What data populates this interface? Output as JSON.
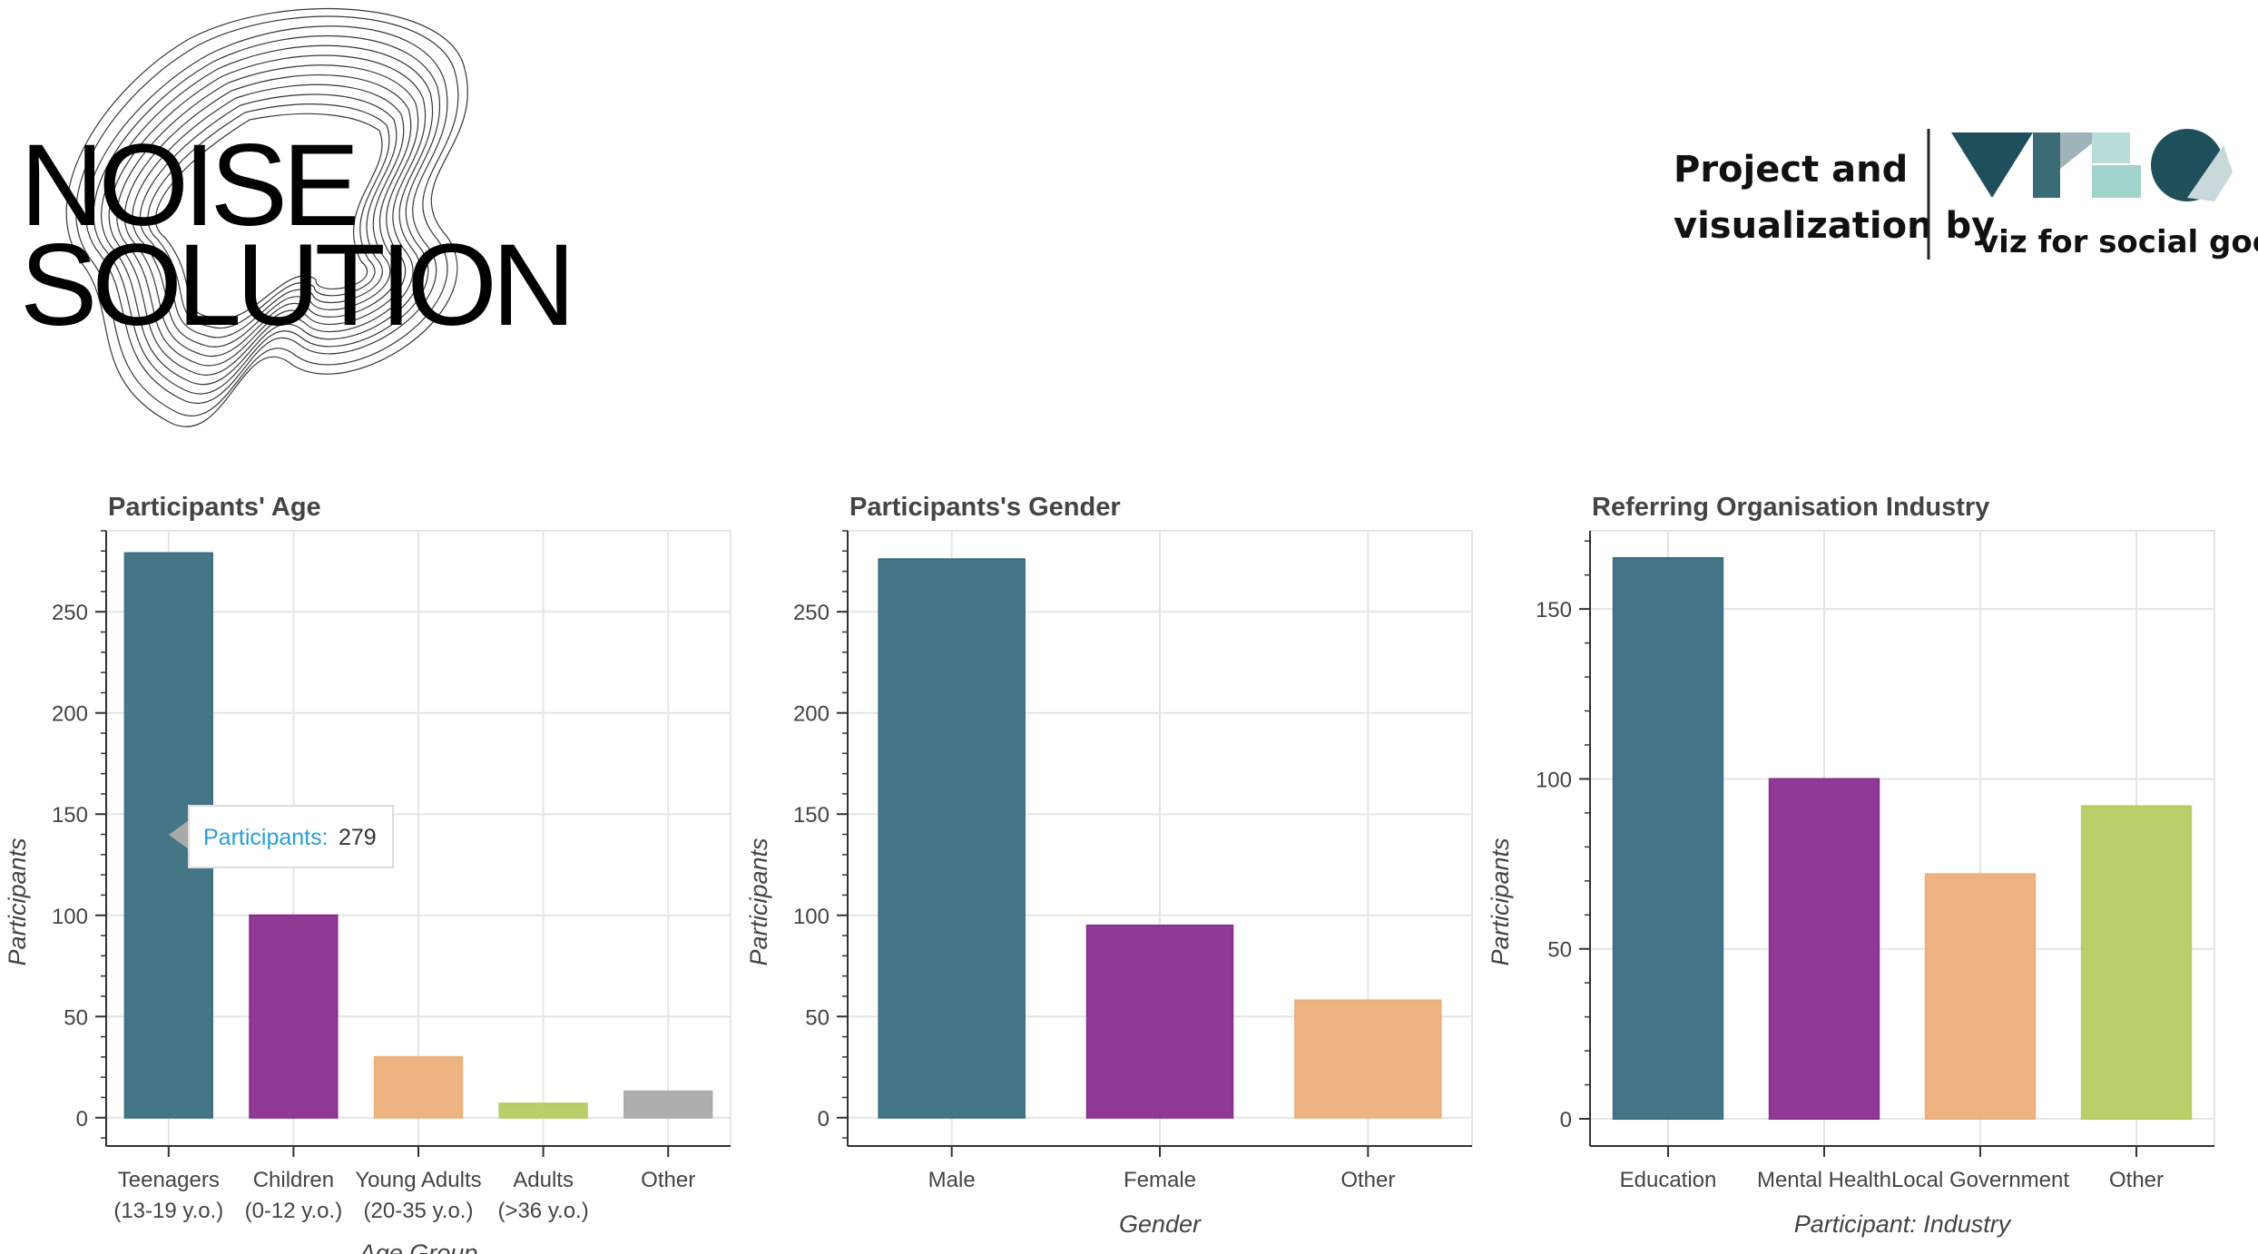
{
  "brand": {
    "logo_line1": "NOISE",
    "logo_line2": "SOLUTION",
    "credit_line1": "Project and",
    "credit_line2": "visualization by",
    "partner_tagline": "viz for social good"
  },
  "tooltip": {
    "label": "Participants:",
    "value": "279"
  },
  "colors": {
    "teal": "#3a6f82",
    "purple": "#8a2e8f",
    "orange": "#ecb07a",
    "green": "#b4cc62",
    "gray": "#aaaaaa"
  },
  "chart_data": [
    {
      "type": "bar",
      "title": "Participants' Age",
      "xlabel": "Age Group",
      "ylabel": "Participants",
      "categories": [
        [
          "Teenagers",
          "(13-19 y.o.)"
        ],
        [
          "Children",
          "(0-12 y.o.)"
        ],
        [
          "Young Adults",
          "(20-35 y.o.)"
        ],
        [
          "Adults",
          "(>36 y.o.)"
        ],
        [
          "Other"
        ]
      ],
      "values": [
        279,
        100,
        30,
        7,
        13
      ],
      "colors": [
        "#3a6f82",
        "#8a2e8f",
        "#ecb07a",
        "#b4cc62",
        "#aaaaaa"
      ],
      "ylim": [
        -14,
        290
      ],
      "yticks": [
        0,
        50,
        100,
        150,
        200,
        250
      ],
      "yminor": 10,
      "grid": true
    },
    {
      "type": "bar",
      "title": "Participants's Gender",
      "xlabel": "Gender",
      "ylabel": "Participants",
      "categories": [
        [
          "Male"
        ],
        [
          "Female"
        ],
        [
          "Other"
        ]
      ],
      "values": [
        276,
        95,
        58
      ],
      "colors": [
        "#3a6f82",
        "#8a2e8f",
        "#ecb07a"
      ],
      "ylim": [
        -14,
        290
      ],
      "yticks": [
        0,
        50,
        100,
        150,
        200,
        250
      ],
      "yminor": 10,
      "grid": true
    },
    {
      "type": "bar",
      "title": "Referring Organisation Industry",
      "xlabel": "Participant: Industry",
      "ylabel": "Participants",
      "categories": [
        [
          "Education"
        ],
        [
          "Mental Health"
        ],
        [
          "Local Government"
        ],
        [
          "Other"
        ]
      ],
      "values": [
        165,
        100,
        72,
        92
      ],
      "colors": [
        "#3a6f82",
        "#8a2e8f",
        "#ecb07a",
        "#b4cc62"
      ],
      "ylim": [
        -8,
        173
      ],
      "yticks": [
        0,
        50,
        100,
        150
      ],
      "yminor": 10,
      "grid": true
    }
  ]
}
